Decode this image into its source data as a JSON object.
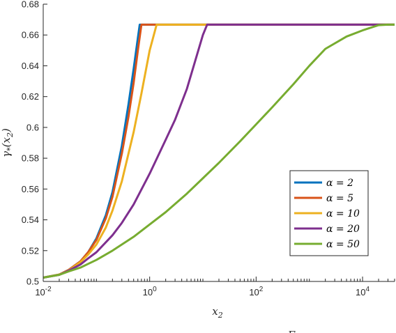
{
  "chart_data": {
    "type": "line",
    "x_scale": "log",
    "xlim": [
      0.01,
      40000
    ],
    "ylim": [
      0.5,
      0.68
    ],
    "xlabel": "x2",
    "ylabel": "γ*(x2)",
    "x_tick_labels": [
      {
        "base": "10",
        "exp": "-2",
        "value": 0.01
      },
      {
        "base": "10",
        "exp": "0",
        "value": 1
      },
      {
        "base": "10",
        "exp": "2",
        "value": 100
      },
      {
        "base": "10",
        "exp": "4",
        "value": 10000
      }
    ],
    "y_ticks": [
      0.5,
      0.52,
      0.54,
      0.56,
      0.58,
      0.6,
      0.62,
      0.64,
      0.66,
      0.68
    ],
    "y_tick_labels": [
      "0.5",
      "0.52",
      "0.54",
      "0.56",
      "0.58",
      "0.6",
      "0.62",
      "0.64",
      "0.66",
      "0.68"
    ],
    "legend_position": "right",
    "grid": false,
    "bottom_cutoff_text": "Γ",
    "series": [
      {
        "name": "α = 2",
        "color": "#0072BD",
        "points": [
          [
            0.01,
            0.5025
          ],
          [
            0.02,
            0.5045
          ],
          [
            0.03,
            0.5075
          ],
          [
            0.05,
            0.513
          ],
          [
            0.07,
            0.519
          ],
          [
            0.1,
            0.528
          ],
          [
            0.15,
            0.543
          ],
          [
            0.2,
            0.558
          ],
          [
            0.3,
            0.588
          ],
          [
            0.4,
            0.615
          ],
          [
            0.5,
            0.638
          ],
          [
            0.6,
            0.658
          ],
          [
            0.65,
            0.6667
          ],
          [
            40000,
            0.6667
          ]
        ]
      },
      {
        "name": "α = 5",
        "color": "#D95319",
        "points": [
          [
            0.01,
            0.5025
          ],
          [
            0.02,
            0.5045
          ],
          [
            0.03,
            0.5075
          ],
          [
            0.05,
            0.513
          ],
          [
            0.07,
            0.519
          ],
          [
            0.1,
            0.527
          ],
          [
            0.15,
            0.541
          ],
          [
            0.2,
            0.555
          ],
          [
            0.3,
            0.583
          ],
          [
            0.4,
            0.607
          ],
          [
            0.5,
            0.629
          ],
          [
            0.6,
            0.65
          ],
          [
            0.7,
            0.6667
          ],
          [
            40000,
            0.6667
          ]
        ]
      },
      {
        "name": "α = 10",
        "color": "#EDB120",
        "points": [
          [
            0.01,
            0.5025
          ],
          [
            0.02,
            0.5045
          ],
          [
            0.03,
            0.5072
          ],
          [
            0.05,
            0.5125
          ],
          [
            0.07,
            0.5175
          ],
          [
            0.1,
            0.524
          ],
          [
            0.15,
            0.535
          ],
          [
            0.2,
            0.546
          ],
          [
            0.3,
            0.565
          ],
          [
            0.5,
            0.597
          ],
          [
            0.7,
            0.622
          ],
          [
            1,
            0.65
          ],
          [
            1.35,
            0.6667
          ],
          [
            40000,
            0.6667
          ]
        ]
      },
      {
        "name": "α = 20",
        "color": "#7E2F8E",
        "points": [
          [
            0.01,
            0.5025
          ],
          [
            0.02,
            0.5043
          ],
          [
            0.03,
            0.507
          ],
          [
            0.05,
            0.511
          ],
          [
            0.07,
            0.515
          ],
          [
            0.1,
            0.519
          ],
          [
            0.2,
            0.53
          ],
          [
            0.3,
            0.538
          ],
          [
            0.5,
            0.55
          ],
          [
            1,
            0.57
          ],
          [
            2,
            0.592
          ],
          [
            3,
            0.605
          ],
          [
            5,
            0.625
          ],
          [
            7,
            0.642
          ],
          [
            10,
            0.66
          ],
          [
            12,
            0.6667
          ],
          [
            40000,
            0.6667
          ]
        ]
      },
      {
        "name": "α = 50",
        "color": "#77AC30",
        "points": [
          [
            0.01,
            0.5025
          ],
          [
            0.02,
            0.5043
          ],
          [
            0.03,
            0.5065
          ],
          [
            0.05,
            0.509
          ],
          [
            0.1,
            0.514
          ],
          [
            0.2,
            0.52
          ],
          [
            0.5,
            0.529
          ],
          [
            1,
            0.537
          ],
          [
            2,
            0.545
          ],
          [
            5,
            0.557
          ],
          [
            10,
            0.567
          ],
          [
            20,
            0.577
          ],
          [
            50,
            0.591
          ],
          [
            100,
            0.602
          ],
          [
            200,
            0.613
          ],
          [
            500,
            0.628
          ],
          [
            1000,
            0.64
          ],
          [
            2000,
            0.651
          ],
          [
            5000,
            0.659
          ],
          [
            10000,
            0.663
          ],
          [
            20000,
            0.6664
          ],
          [
            30000,
            0.6667
          ],
          [
            40000,
            0.6667
          ]
        ]
      }
    ]
  }
}
